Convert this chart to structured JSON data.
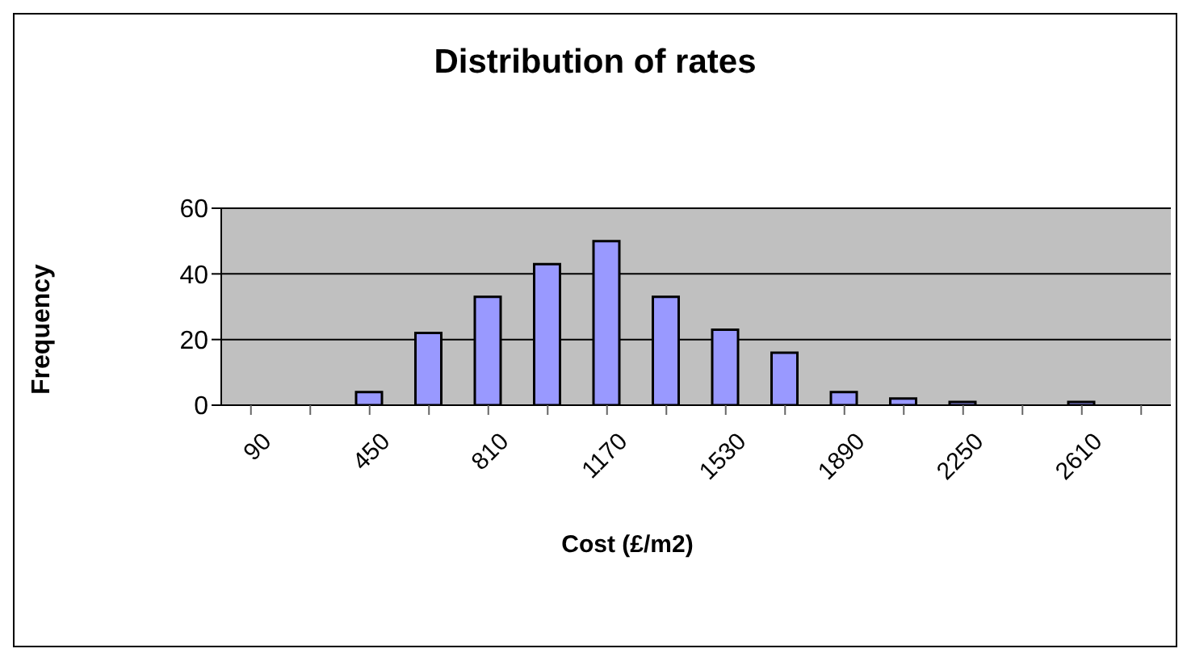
{
  "chart_data": {
    "type": "bar",
    "title": "Distribution of rates",
    "xlabel": "Cost (£/m2)",
    "ylabel": "Frequency",
    "categories": [
      "90",
      null,
      "450",
      null,
      "810",
      null,
      "1170",
      null,
      "1530",
      null,
      "1890",
      null,
      "2250",
      null,
      "2610",
      null
    ],
    "values": [
      0,
      0,
      4,
      22,
      33,
      43,
      50,
      33,
      23,
      16,
      4,
      2,
      1,
      0,
      1,
      0
    ],
    "color": "#9999ff",
    "ylim": [
      0,
      60
    ],
    "yticks": [
      0,
      20,
      40,
      60
    ],
    "grid": "y"
  }
}
